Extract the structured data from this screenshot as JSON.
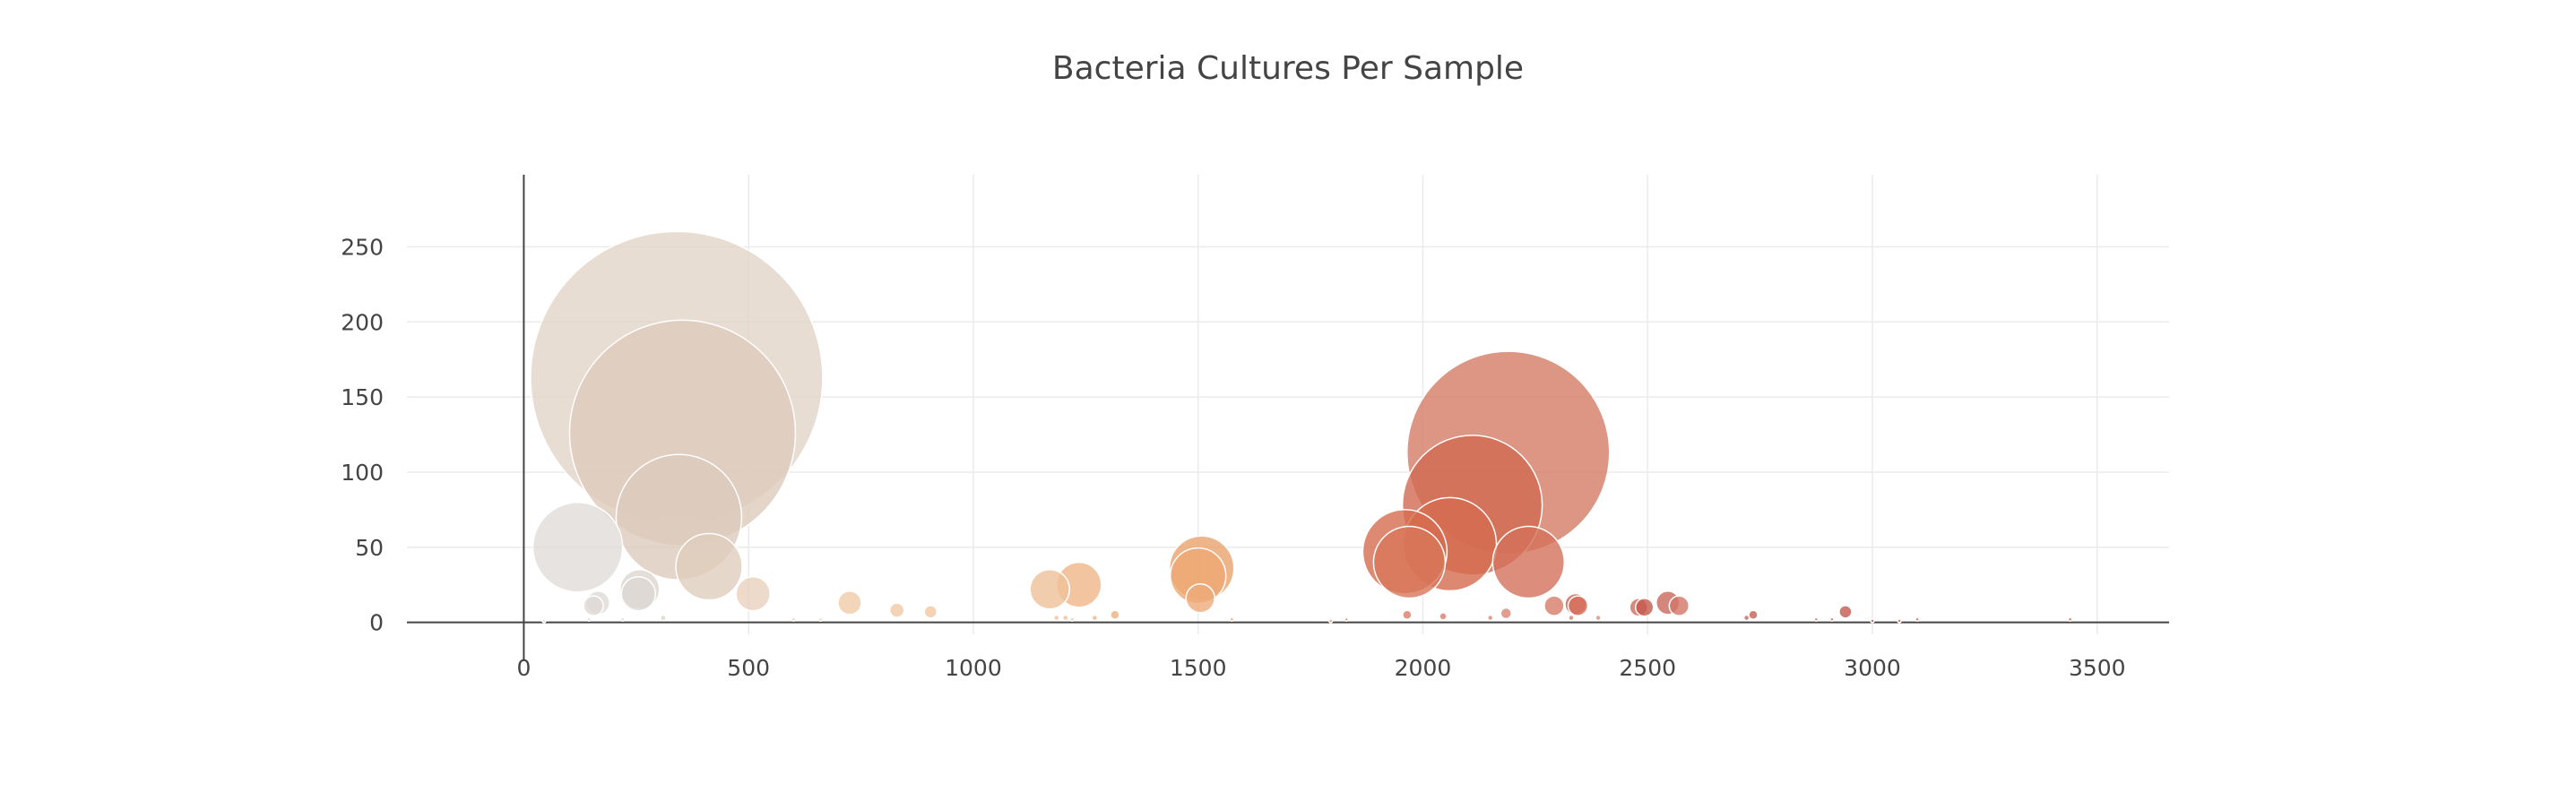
{
  "chart_data": {
    "type": "scatter",
    "title": "Bacteria Cultures Per Sample",
    "xlabel": "",
    "ylabel": "",
    "xlim": [
      -260,
      3660
    ],
    "ylim": [
      -8,
      298
    ],
    "x_ticks": [
      0,
      500,
      1000,
      1500,
      2000,
      2500,
      3000,
      3500
    ],
    "y_ticks": [
      0,
      50,
      100,
      150,
      200,
      250
    ],
    "grid": true,
    "legend": "none",
    "marker_size_encodes": "y",
    "colorscale": "earth",
    "points": [
      {
        "x": 340,
        "y": 163,
        "color": "#e2d5c8"
      },
      {
        "x": 353,
        "y": 126,
        "color": "#ddcbbb"
      },
      {
        "x": 345,
        "y": 70,
        "color": "#dccbbc"
      },
      {
        "x": 120,
        "y": 50,
        "color": "#e0dcd8"
      },
      {
        "x": 412,
        "y": 37,
        "color": "#dfcdbd"
      },
      {
        "x": 258,
        "y": 22,
        "color": "#ddd6cf"
      },
      {
        "x": 255,
        "y": 19,
        "color": "#dcd7d2"
      },
      {
        "x": 510,
        "y": 19,
        "color": "#e9d1bd"
      },
      {
        "x": 165,
        "y": 13,
        "color": "#dedad6"
      },
      {
        "x": 155,
        "y": 11,
        "color": "#dedad6"
      },
      {
        "x": 725,
        "y": 13,
        "color": "#f0caa9"
      },
      {
        "x": 830,
        "y": 8,
        "color": "#f1c9a4"
      },
      {
        "x": 905,
        "y": 7,
        "color": "#f1c7a0"
      },
      {
        "x": 1170,
        "y": 22,
        "color": "#efc098"
      },
      {
        "x": 1235,
        "y": 25,
        "color": "#efb688"
      },
      {
        "x": 1508,
        "y": 36,
        "color": "#eba26d"
      },
      {
        "x": 1500,
        "y": 31,
        "color": "#eda772"
      },
      {
        "x": 1505,
        "y": 16,
        "color": "#eeab7a"
      },
      {
        "x": 1205,
        "y": 3,
        "color": "#efbe93"
      },
      {
        "x": 1315,
        "y": 5,
        "color": "#edb080"
      },
      {
        "x": 2190,
        "y": 113,
        "color": "#d57c65"
      },
      {
        "x": 2110,
        "y": 78,
        "color": "#d16a52"
      },
      {
        "x": 1960,
        "y": 47,
        "color": "#d66d4f"
      },
      {
        "x": 2060,
        "y": 52,
        "color": "#d56b4f"
      },
      {
        "x": 1970,
        "y": 40,
        "color": "#d8765a"
      },
      {
        "x": 2235,
        "y": 40,
        "color": "#d4705a"
      },
      {
        "x": 2292,
        "y": 11,
        "color": "#d87c68"
      },
      {
        "x": 2340,
        "y": 12,
        "color": "#cf6150"
      },
      {
        "x": 2345,
        "y": 11,
        "color": "#d66f5c"
      },
      {
        "x": 2480,
        "y": 10,
        "color": "#d06b5c"
      },
      {
        "x": 2493,
        "y": 10,
        "color": "#c4594c"
      },
      {
        "x": 2545,
        "y": 13,
        "color": "#c9675b"
      },
      {
        "x": 2570,
        "y": 11,
        "color": "#d27668"
      },
      {
        "x": 2185,
        "y": 6,
        "color": "#d98472"
      },
      {
        "x": 1965,
        "y": 5,
        "color": "#db7d64"
      },
      {
        "x": 2045,
        "y": 4,
        "color": "#d87a66"
      },
      {
        "x": 2940,
        "y": 7,
        "color": "#c35a50"
      },
      {
        "x": 2735,
        "y": 5,
        "color": "#c65f55"
      },
      {
        "x": 2720,
        "y": 3,
        "color": "#c8675d"
      },
      {
        "x": 2910,
        "y": 2,
        "color": "#c96a61"
      },
      {
        "x": 2875,
        "y": 2,
        "color": "#cc766c"
      },
      {
        "x": 2330,
        "y": 3,
        "color": "#d78070"
      },
      {
        "x": 2390,
        "y": 3,
        "color": "#d6907e"
      },
      {
        "x": 2150,
        "y": 3,
        "color": "#d98676"
      },
      {
        "x": 1185,
        "y": 3,
        "color": "#efc299"
      },
      {
        "x": 1220,
        "y": 2,
        "color": "#efbb90"
      },
      {
        "x": 1270,
        "y": 3,
        "color": "#eeb386"
      },
      {
        "x": 1575,
        "y": 2,
        "color": "#eca472"
      },
      {
        "x": 1795,
        "y": 1,
        "color": "#e99c6c"
      },
      {
        "x": 1830,
        "y": 2,
        "color": "#e4936a"
      },
      {
        "x": 45,
        "y": 1,
        "color": "#e2dfdc"
      },
      {
        "x": 145,
        "y": 2,
        "color": "#dedad6"
      },
      {
        "x": 220,
        "y": 2,
        "color": "#dbd7d3"
      },
      {
        "x": 310,
        "y": 3,
        "color": "#ddd2c7"
      },
      {
        "x": 600,
        "y": 2,
        "color": "#ecd0b8"
      },
      {
        "x": 660,
        "y": 2,
        "color": "#eecdaf"
      },
      {
        "x": 3000,
        "y": 1,
        "color": "#c56157"
      },
      {
        "x": 3060,
        "y": 1,
        "color": "#c76a60"
      },
      {
        "x": 3100,
        "y": 2,
        "color": "#c9675d"
      },
      {
        "x": 3440,
        "y": 2,
        "color": "#c8675c"
      }
    ]
  }
}
